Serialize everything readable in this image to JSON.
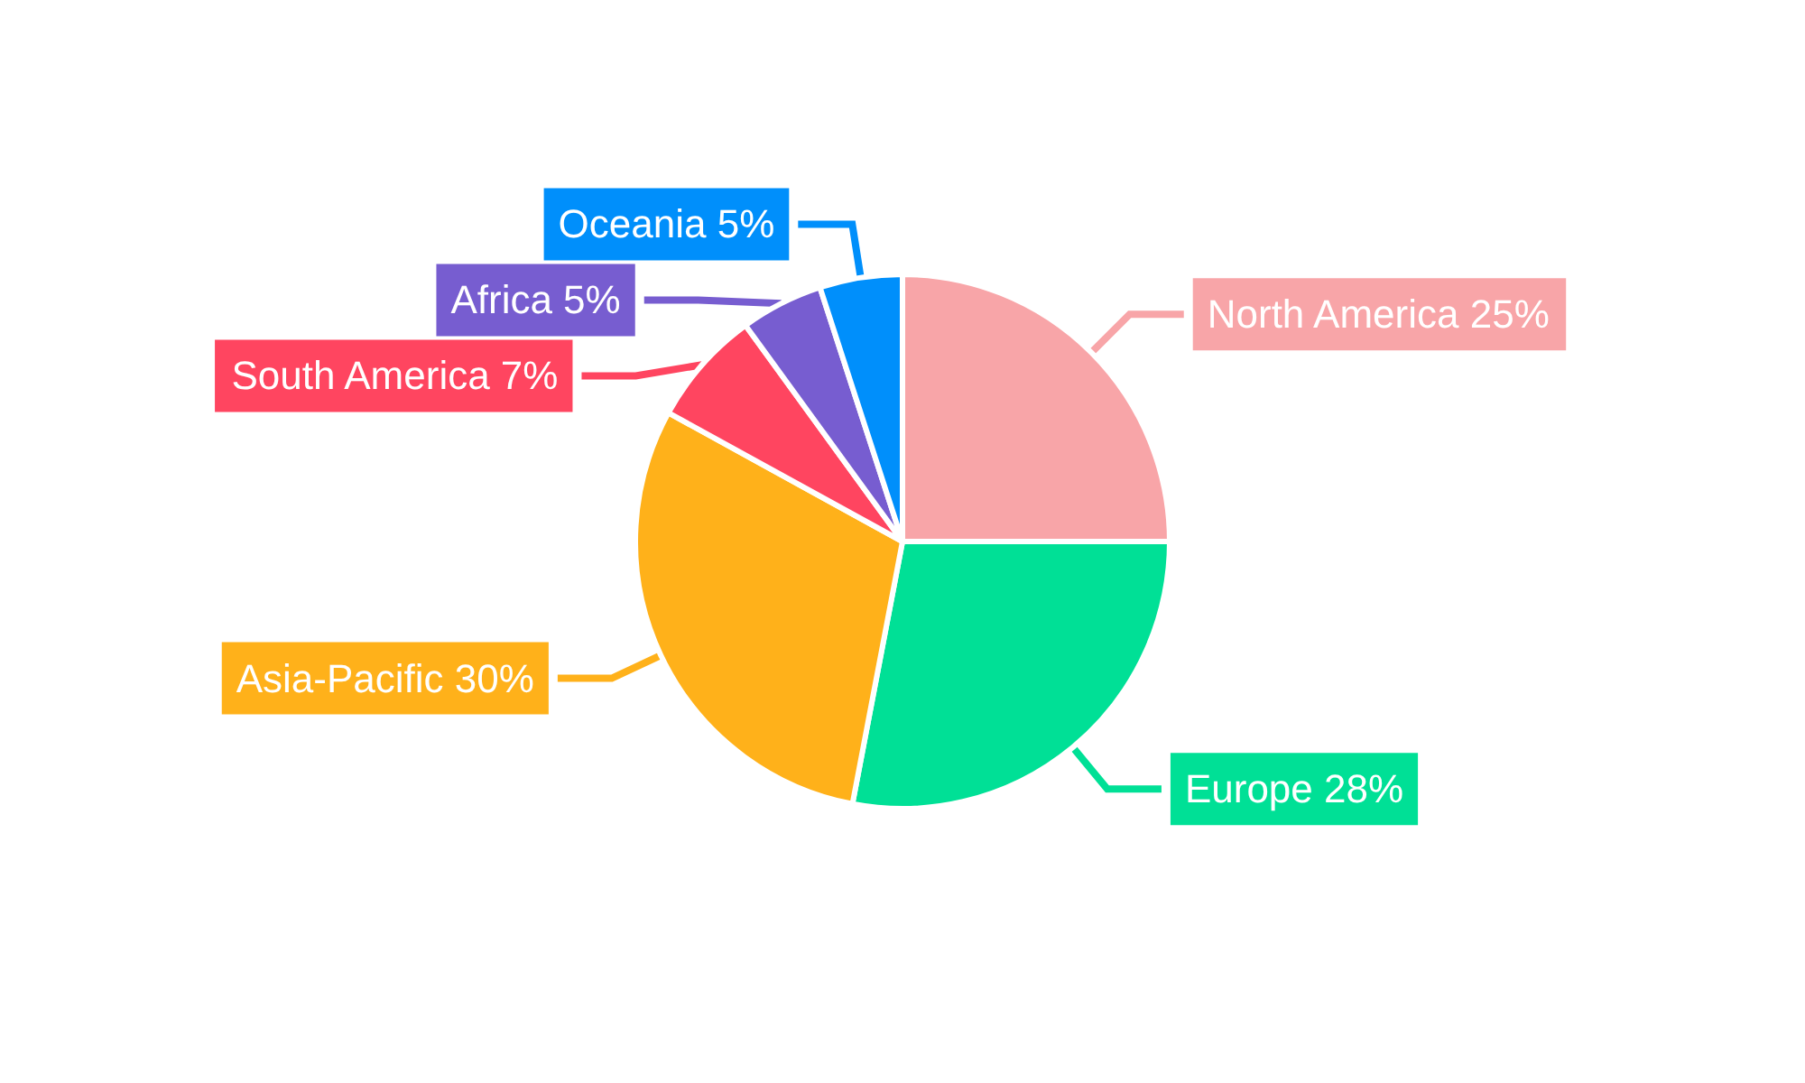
{
  "chart_data": {
    "type": "pie",
    "categories": [
      "North America",
      "Europe",
      "Asia-Pacific",
      "South America",
      "Africa",
      "Oceania"
    ],
    "values": [
      25,
      28,
      30,
      7,
      5,
      5
    ],
    "value_labels": [
      "25%",
      "28%",
      "30%",
      "7%",
      "5%",
      "5%"
    ],
    "colors": [
      "#f8a5a8",
      "#00e096",
      "#ffb11a",
      "#ff4560",
      "#775dd0",
      "#008ffb"
    ],
    "legend": false
  }
}
